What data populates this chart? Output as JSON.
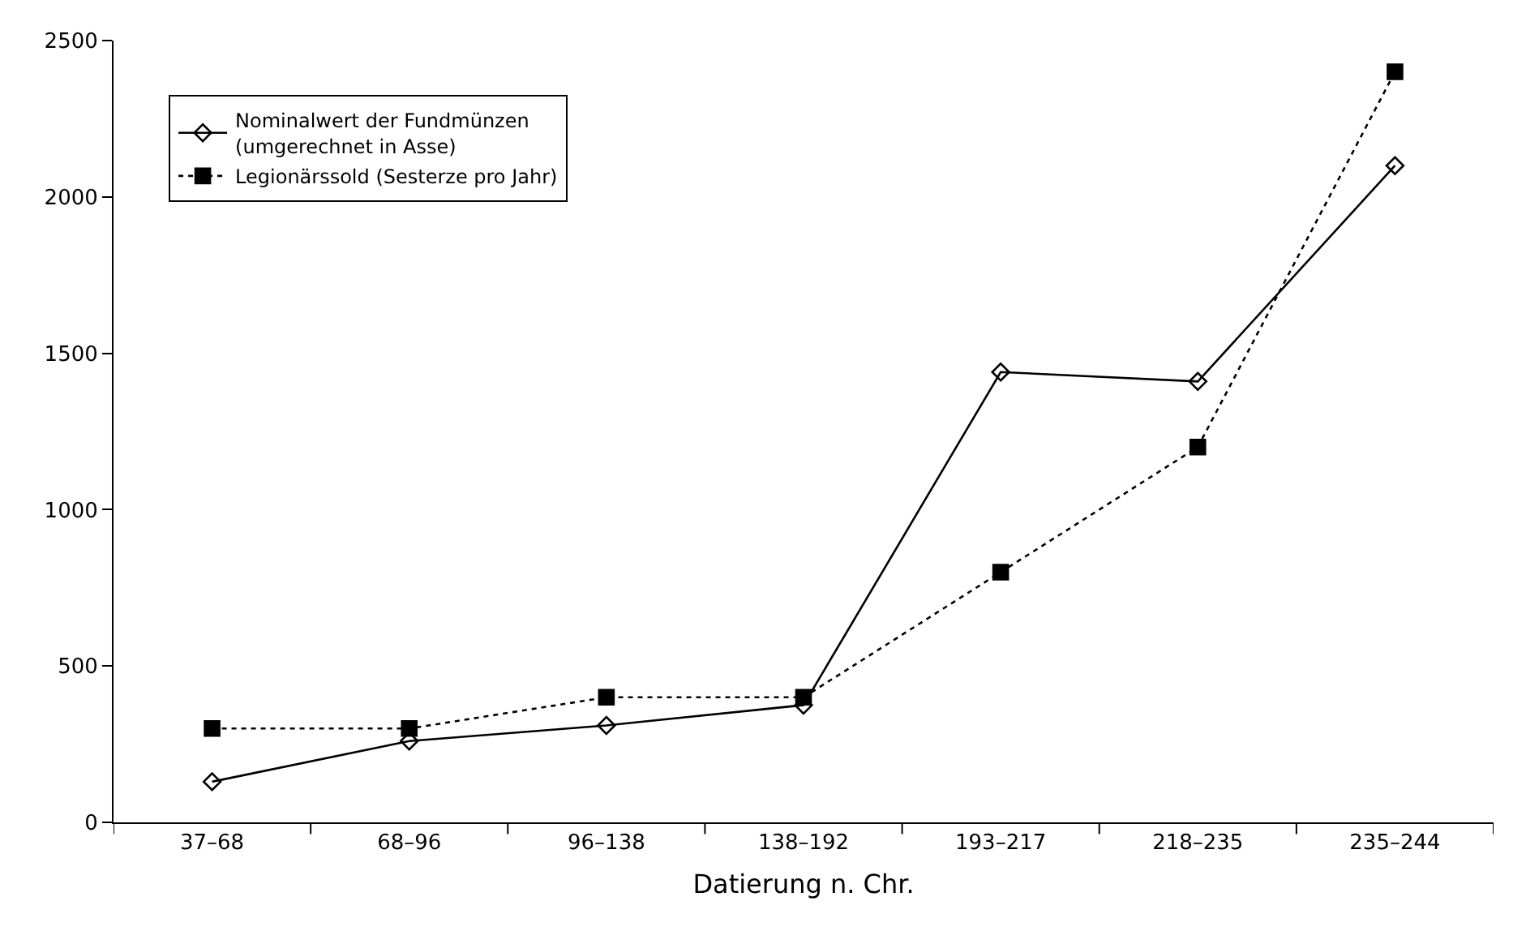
{
  "chart_data": {
    "type": "line",
    "xlabel": "Datierung n. Chr.",
    "categories": [
      "37–68",
      "68–96",
      "96–138",
      "138–192",
      "193–217",
      "218–235",
      "235–244"
    ],
    "series": [
      {
        "name": "Nominalwert der Fundmünzen\n(umgerechnet in Asse)",
        "color": "#000000",
        "values": [
          130,
          260,
          310,
          375,
          1440,
          1410,
          2100
        ],
        "marker": "diamond",
        "line_style": "solid"
      },
      {
        "name": "Legionärssold (Sesterze pro Jahr)",
        "color": "#000000",
        "values": [
          300,
          300,
          400,
          400,
          800,
          1200,
          2400
        ],
        "marker": "square",
        "line_style": "dotted"
      }
    ],
    "ylim": [
      0,
      2500
    ],
    "yticks": [
      0,
      500,
      1000,
      1500,
      2000,
      2500
    ],
    "grid": false,
    "legend": "top left"
  }
}
